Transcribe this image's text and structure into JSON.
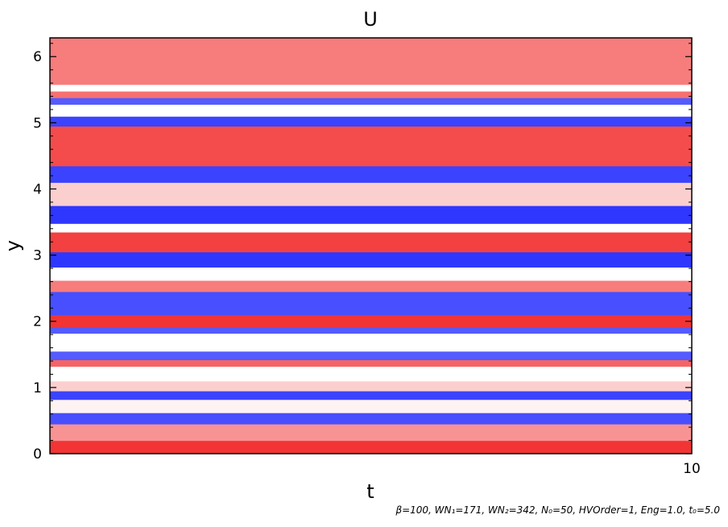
{
  "chart_data": {
    "type": "heatmap",
    "title": "U",
    "xlabel": "t",
    "ylabel": "y",
    "xlim": [
      0,
      10
    ],
    "ylim": [
      0,
      6.283
    ],
    "x_tick_labels": [
      "10"
    ],
    "x_tick_values": [
      10
    ],
    "y_tick_labels": [
      "0",
      "1",
      "2",
      "3",
      "4",
      "5",
      "6"
    ],
    "y_tick_values": [
      0,
      1,
      2,
      3,
      4,
      5,
      6
    ],
    "colormap": {
      "negative": "#0a14ff",
      "zero": "#ffffff",
      "positive": "#f01010"
    },
    "bands": [
      {
        "y0": 0.0,
        "y1": 0.2,
        "v": 0.85
      },
      {
        "y0": 0.2,
        "y1": 0.45,
        "v": 0.45
      },
      {
        "y0": 0.45,
        "y1": 0.62,
        "v": -0.75
      },
      {
        "y0": 0.62,
        "y1": 0.82,
        "v": 0.05
      },
      {
        "y0": 0.82,
        "y1": 0.95,
        "v": -0.8
      },
      {
        "y0": 0.95,
        "y1": 1.1,
        "v": 0.2
      },
      {
        "y0": 1.1,
        "y1": 1.32,
        "v": 0.0
      },
      {
        "y0": 1.32,
        "y1": 1.42,
        "v": 0.65
      },
      {
        "y0": 1.42,
        "y1": 1.55,
        "v": -0.7
      },
      {
        "y0": 1.55,
        "y1": 1.82,
        "v": 0.0
      },
      {
        "y0": 1.82,
        "y1": 1.92,
        "v": -0.7
      },
      {
        "y0": 1.92,
        "y1": 2.1,
        "v": 0.85
      },
      {
        "y0": 2.1,
        "y1": 2.45,
        "v": -0.75
      },
      {
        "y0": 2.45,
        "y1": 2.62,
        "v": 0.55
      },
      {
        "y0": 2.62,
        "y1": 2.82,
        "v": 0.0
      },
      {
        "y0": 2.82,
        "y1": 3.05,
        "v": -0.85
      },
      {
        "y0": 3.05,
        "y1": 3.35,
        "v": 0.8
      },
      {
        "y0": 3.35,
        "y1": 3.48,
        "v": 0.0
      },
      {
        "y0": 3.48,
        "y1": 3.75,
        "v": -0.85
      },
      {
        "y0": 3.75,
        "y1": 4.1,
        "v": 0.2
      },
      {
        "y0": 4.1,
        "y1": 4.35,
        "v": -0.8
      },
      {
        "y0": 4.35,
        "y1": 4.95,
        "v": 0.75
      },
      {
        "y0": 4.95,
        "y1": 5.1,
        "v": -0.8
      },
      {
        "y0": 5.1,
        "y1": 5.28,
        "v": 0.0
      },
      {
        "y0": 5.28,
        "y1": 5.38,
        "v": -0.7
      },
      {
        "y0": 5.38,
        "y1": 5.48,
        "v": 0.6
      },
      {
        "y0": 5.48,
        "y1": 5.58,
        "v": 0.0
      },
      {
        "y0": 5.58,
        "y1": 6.283,
        "v": 0.55
      }
    ]
  },
  "footer": {
    "text": "β=100, WN₁=171, WN₂=342, N₀=50, HVOrder=1, Eng=1.0, t₀=5.0"
  }
}
